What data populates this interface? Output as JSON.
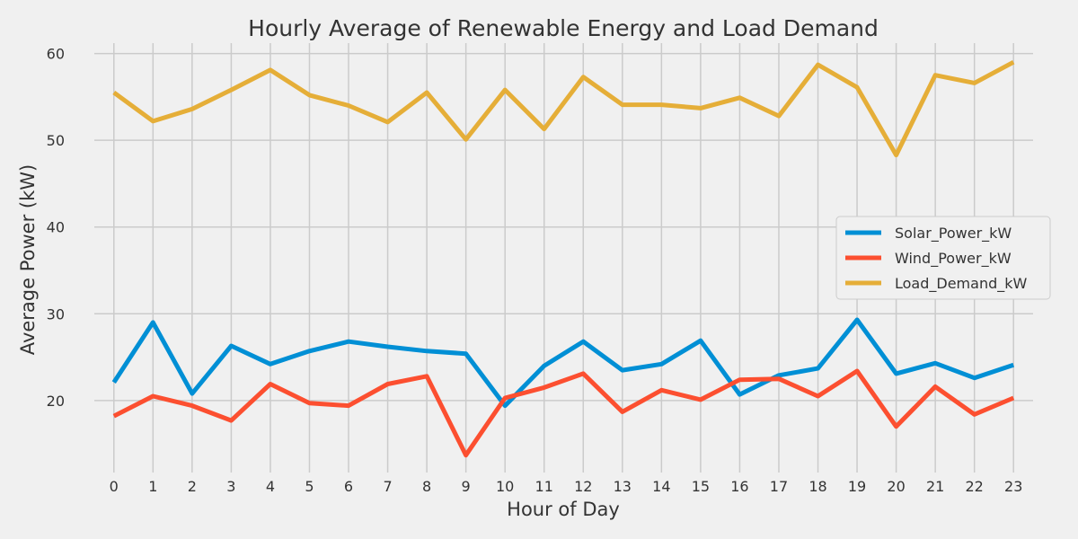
{
  "chart_data": {
    "type": "line",
    "title": "Hourly Average of Renewable Energy and Load Demand",
    "xlabel": "Hour of Day",
    "ylabel": "Average Power (kW)",
    "x": [
      0,
      1,
      2,
      3,
      4,
      5,
      6,
      7,
      8,
      9,
      10,
      11,
      12,
      13,
      14,
      15,
      16,
      17,
      18,
      19,
      20,
      21,
      22,
      23
    ],
    "x_tick_labels": [
      "0",
      "1",
      "2",
      "3",
      "4",
      "5",
      "6",
      "7",
      "8",
      "9",
      "10",
      "11",
      "12",
      "13",
      "14",
      "15",
      "16",
      "17",
      "18",
      "19",
      "20",
      "21",
      "22",
      "23"
    ],
    "y_ticks": [
      20,
      30,
      40,
      50,
      60
    ],
    "y_tick_labels": [
      "20",
      "30",
      "40",
      "50",
      "60"
    ],
    "xlim": [
      -0.5,
      23.5
    ],
    "ylim": [
      11.7,
      61.2
    ],
    "grid": true,
    "legend_position": "center-right",
    "series": [
      {
        "name": "Solar_Power_kW",
        "color": "#008fd5",
        "values": [
          22.1,
          29.0,
          20.8,
          26.3,
          24.2,
          25.7,
          26.8,
          26.2,
          25.7,
          25.4,
          19.4,
          24.0,
          26.8,
          23.5,
          24.2,
          26.9,
          20.7,
          22.9,
          23.7,
          29.3,
          23.1,
          24.3,
          22.6,
          24.1
        ]
      },
      {
        "name": "Wind_Power_kW",
        "color": "#fc4f30",
        "values": [
          18.2,
          20.5,
          19.4,
          17.7,
          21.9,
          19.7,
          19.4,
          21.9,
          22.8,
          13.7,
          20.3,
          21.5,
          23.1,
          18.7,
          21.2,
          20.1,
          22.4,
          22.5,
          20.5,
          23.4,
          17.0,
          21.6,
          18.4,
          20.3
        ]
      },
      {
        "name": "Load_Demand_kW",
        "color": "#e5ae38",
        "values": [
          55.5,
          52.2,
          53.6,
          55.8,
          58.1,
          55.2,
          54.0,
          52.1,
          55.5,
          50.1,
          55.8,
          51.3,
          57.3,
          54.1,
          54.1,
          53.7,
          54.9,
          52.8,
          58.7,
          56.1,
          48.3,
          57.5,
          56.6,
          59.0
        ]
      }
    ]
  }
}
